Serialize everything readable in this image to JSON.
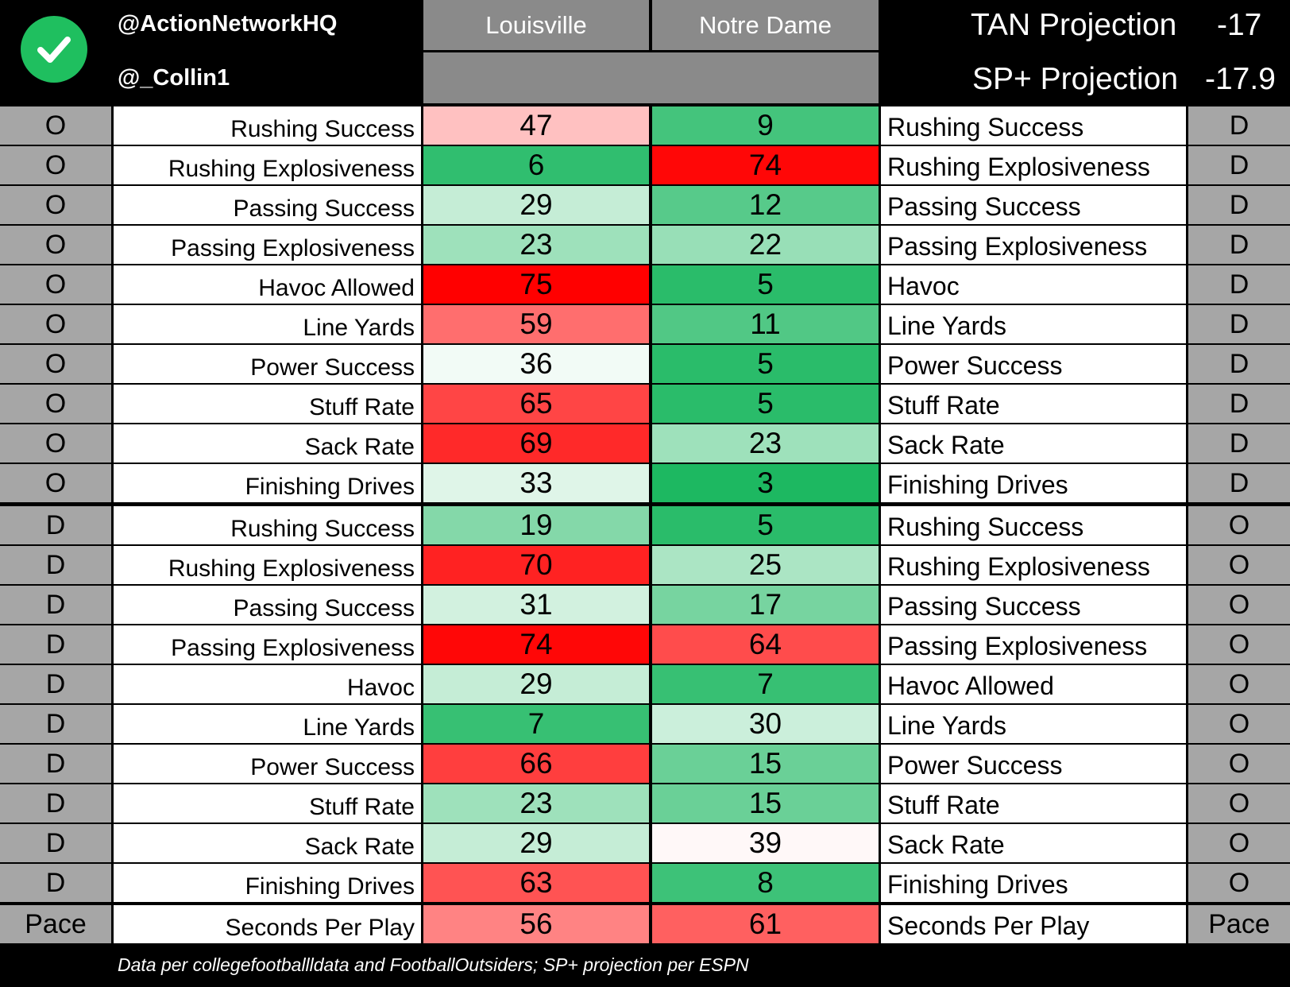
{
  "header": {
    "handle1": "@ActionNetworkHQ",
    "handle2": "@_Collin1",
    "team_left": "Louisville",
    "team_right": "Notre Dame",
    "projections": [
      {
        "label": "TAN Projection",
        "value": "-17"
      },
      {
        "label": "SP+ Projection",
        "value": "-17.9"
      }
    ],
    "logo_icon": "check-circle-icon"
  },
  "colors": {
    "best": "#10b458",
    "neutral": "#ffffff",
    "worst": "#ff0000"
  },
  "chart_data": {
    "type": "table",
    "columns": [
      "Louisville",
      "Notre Dame"
    ],
    "scale": {
      "min": 1,
      "mid": 38,
      "max": 75
    },
    "rows": [
      {
        "left_side": "O",
        "left_label": "Rushing Success",
        "louisville": 47,
        "notre_dame": 9,
        "right_label": "Rushing Success",
        "right_side": "D"
      },
      {
        "left_side": "O",
        "left_label": "Rushing Explosiveness",
        "louisville": 6,
        "notre_dame": 74,
        "right_label": "Rushing Explosiveness",
        "right_side": "D"
      },
      {
        "left_side": "O",
        "left_label": "Passing Success",
        "louisville": 29,
        "notre_dame": 12,
        "right_label": "Passing Success",
        "right_side": "D"
      },
      {
        "left_side": "O",
        "left_label": "Passing Explosiveness",
        "louisville": 23,
        "notre_dame": 22,
        "right_label": "Passing Explosiveness",
        "right_side": "D"
      },
      {
        "left_side": "O",
        "left_label": "Havoc Allowed",
        "louisville": 75,
        "notre_dame": 5,
        "right_label": "Havoc",
        "right_side": "D"
      },
      {
        "left_side": "O",
        "left_label": "Line Yards",
        "louisville": 59,
        "notre_dame": 11,
        "right_label": "Line Yards",
        "right_side": "D"
      },
      {
        "left_side": "O",
        "left_label": "Power Success",
        "louisville": 36,
        "notre_dame": 5,
        "right_label": "Power Success",
        "right_side": "D"
      },
      {
        "left_side": "O",
        "left_label": "Stuff Rate",
        "louisville": 65,
        "notre_dame": 5,
        "right_label": "Stuff Rate",
        "right_side": "D"
      },
      {
        "left_side": "O",
        "left_label": "Sack Rate",
        "louisville": 69,
        "notre_dame": 23,
        "right_label": "Sack Rate",
        "right_side": "D"
      },
      {
        "left_side": "O",
        "left_label": "Finishing Drives",
        "louisville": 33,
        "notre_dame": 3,
        "right_label": "Finishing Drives",
        "right_side": "D"
      },
      {
        "left_side": "D",
        "left_label": "Rushing Success",
        "louisville": 19,
        "notre_dame": 5,
        "right_label": "Rushing Success",
        "right_side": "O"
      },
      {
        "left_side": "D",
        "left_label": "Rushing Explosiveness",
        "louisville": 70,
        "notre_dame": 25,
        "right_label": "Rushing Explosiveness",
        "right_side": "O"
      },
      {
        "left_side": "D",
        "left_label": "Passing Success",
        "louisville": 31,
        "notre_dame": 17,
        "right_label": "Passing Success",
        "right_side": "O"
      },
      {
        "left_side": "D",
        "left_label": "Passing Explosiveness",
        "louisville": 74,
        "notre_dame": 64,
        "right_label": "Passing Explosiveness",
        "right_side": "O"
      },
      {
        "left_side": "D",
        "left_label": "Havoc",
        "louisville": 29,
        "notre_dame": 7,
        "right_label": "Havoc Allowed",
        "right_side": "O"
      },
      {
        "left_side": "D",
        "left_label": "Line Yards",
        "louisville": 7,
        "notre_dame": 30,
        "right_label": "Line Yards",
        "right_side": "O"
      },
      {
        "left_side": "D",
        "left_label": "Power Success",
        "louisville": 66,
        "notre_dame": 15,
        "right_label": "Power Success",
        "right_side": "O"
      },
      {
        "left_side": "D",
        "left_label": "Stuff Rate",
        "louisville": 23,
        "notre_dame": 15,
        "right_label": "Stuff Rate",
        "right_side": "O"
      },
      {
        "left_side": "D",
        "left_label": "Sack Rate",
        "louisville": 29,
        "notre_dame": 39,
        "right_label": "Sack Rate",
        "right_side": "O"
      },
      {
        "left_side": "D",
        "left_label": "Finishing Drives",
        "louisville": 63,
        "notre_dame": 8,
        "right_label": "Finishing Drives",
        "right_side": "O"
      },
      {
        "left_side": "Pace",
        "left_label": "Seconds Per Play",
        "louisville": 56,
        "notre_dame": 61,
        "right_label": "Seconds Per Play",
        "right_side": "Pace"
      }
    ]
  },
  "footer": "Data per collegefootballldata and FootballOutsiders; SP+ projection per ESPN"
}
